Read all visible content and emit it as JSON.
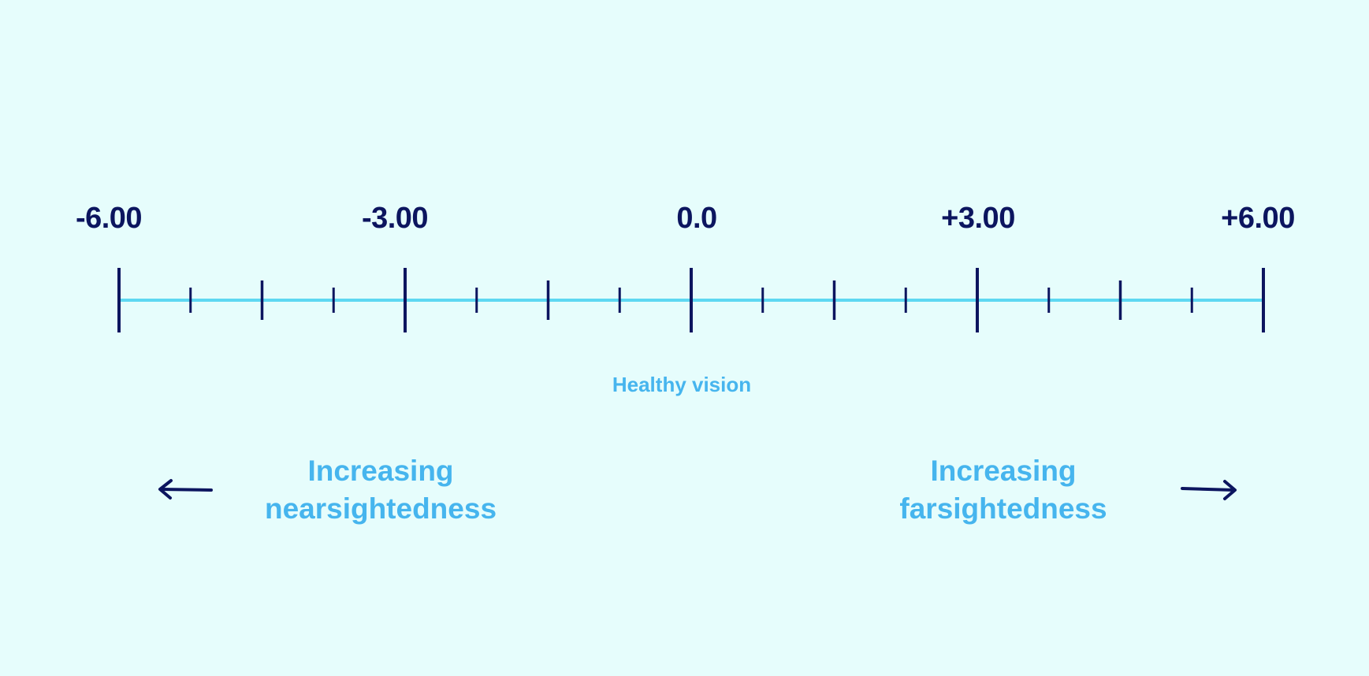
{
  "scale": {
    "min": -6,
    "max": 6,
    "major_ticks": [
      {
        "value": -6,
        "label": "-6.00"
      },
      {
        "value": -3,
        "label": "-3.00"
      },
      {
        "value": 0,
        "label": "0.0"
      },
      {
        "value": 3,
        "label": "+3.00"
      },
      {
        "value": 6,
        "label": "+6.00"
      }
    ],
    "minor_ticks_per_interval": 3,
    "line_color": "#5ed8f2",
    "tick_color": "#0c155f"
  },
  "center_caption": "Healthy vision",
  "left_direction": {
    "line1": "Increasing",
    "line2": "nearsightedness",
    "arrow": "left-arrow-icon"
  },
  "right_direction": {
    "line1": "Increasing",
    "line2": "farsightedness",
    "arrow": "right-arrow-icon"
  },
  "colors": {
    "background": "#e6fdfc",
    "dark_navy": "#0c155f",
    "light_blue_text": "#46b5ee"
  }
}
